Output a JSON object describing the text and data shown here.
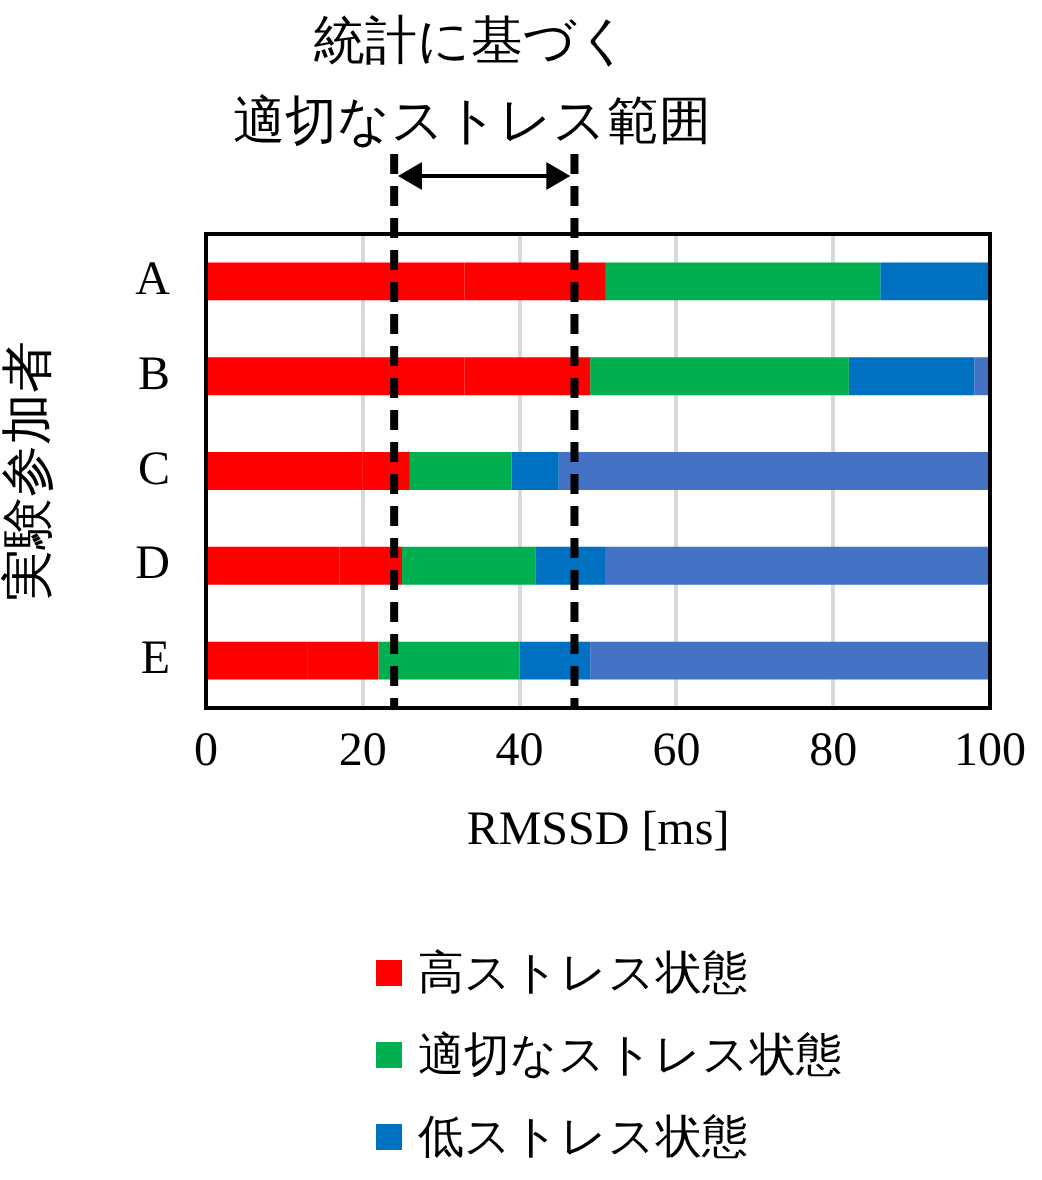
{
  "chart_data": {
    "type": "bar",
    "orientation": "horizontal",
    "stacked": true,
    "annotations": [
      "統計に基づく",
      "適切なストレス範囲"
    ],
    "xlabel": "RMSSD [ms]",
    "ylabel": "実験参加者",
    "categories": [
      "A",
      "B",
      "C",
      "D",
      "E"
    ],
    "series": [
      {
        "name": "高ストレス状態",
        "color": "#ff0000",
        "values": [
          33,
          33,
          20,
          17,
          13
        ]
      },
      {
        "color": "#ff0000",
        "values": [
          18,
          16,
          6,
          8,
          9
        ]
      },
      {
        "name": "適切なストレス状態",
        "color": "#00b050",
        "values": [
          35,
          33,
          13,
          17,
          18
        ]
      },
      {
        "name": "低ストレス状態",
        "color": "#0070c0",
        "values": [
          14,
          16,
          6,
          9,
          9
        ]
      },
      {
        "color": "#4472c4",
        "values": [
          0,
          2,
          55,
          49,
          51
        ]
      }
    ],
    "xlim": [
      0,
      100
    ],
    "xticks": [
      0,
      20,
      40,
      60,
      80,
      100
    ],
    "grid": "x",
    "legend": "bottom",
    "ref_lines": [
      {
        "axis": "x",
        "value": 24,
        "color": "#000000",
        "line_style": "dashed"
      },
      {
        "axis": "x",
        "value": 47,
        "color": "#000000",
        "line_style": "dashed"
      }
    ]
  }
}
